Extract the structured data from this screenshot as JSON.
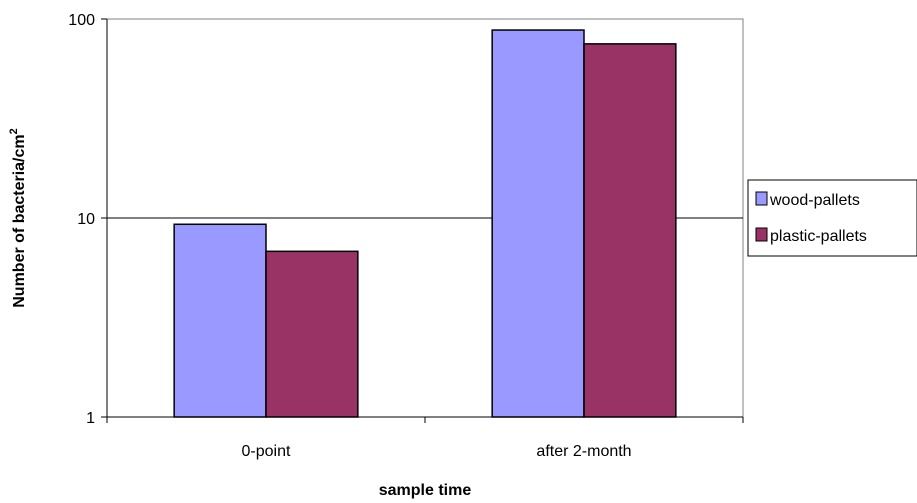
{
  "chart_data": {
    "type": "bar",
    "title": "",
    "categories": [
      "0-point",
      "after 2-month"
    ],
    "series": [
      {
        "name": "wood-pallets",
        "values": [
          9.3,
          88
        ],
        "color": "#9999FF"
      },
      {
        "name": "plastic-pallets",
        "values": [
          6.8,
          75
        ],
        "color": "#993366"
      }
    ],
    "xlabel": "sample time",
    "ylabel": "Number of bacteria/cm",
    "ylabel_superscript": "2",
    "yscale": "log",
    "ylim": [
      1,
      100
    ],
    "yticks": [
      "1",
      "10",
      "100"
    ],
    "grid": true,
    "legend_position": "right"
  }
}
